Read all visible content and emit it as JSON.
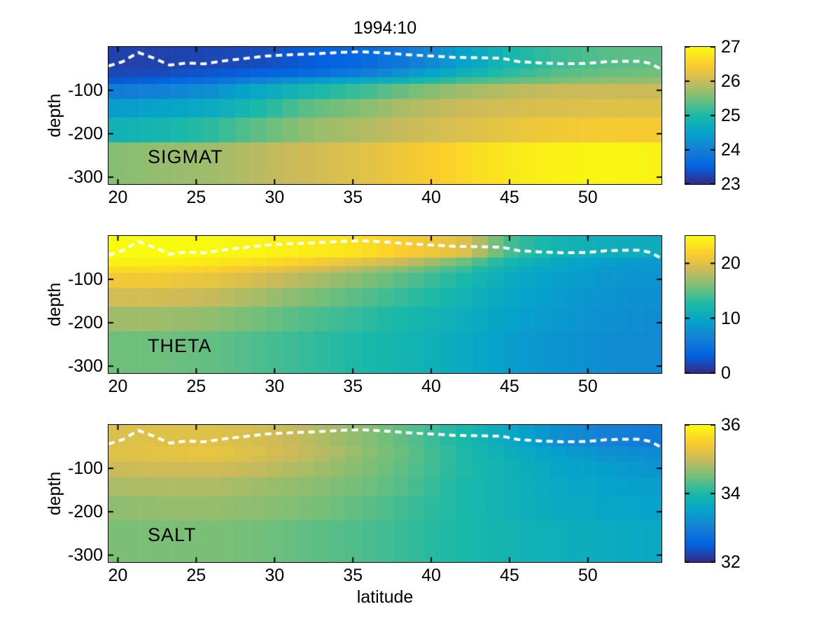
{
  "title": "1994:10",
  "axes": {
    "xlabel": "latitude",
    "ylabel": "depth",
    "x_ticks": [
      20,
      25,
      30,
      35,
      40,
      45,
      50
    ],
    "y_ticks": [
      -100,
      -200,
      -300
    ],
    "x_range": [
      19.4,
      54.7
    ],
    "depth_range_m": [
      0,
      316
    ]
  },
  "colormap": {
    "name": "parula",
    "stops": [
      "#352A87",
      "#0363E1",
      "#1480D6",
      "#06A4CA",
      "#1AB9A8",
      "#72BF7A",
      "#CBBA5A",
      "#FBCD2D",
      "#F9FB0E"
    ]
  },
  "mixed_layer_line": {
    "color": "#FFFFFF",
    "style": "dashed",
    "lat": [
      19.4,
      20.3,
      21.3,
      22.3,
      23.3,
      24.4,
      25.5,
      26.6,
      28.0,
      29.5,
      31.0,
      32.5,
      34.0,
      35.5,
      37.0,
      38.5,
      40.0,
      41.5,
      43.0,
      44.5,
      45.6,
      47.0,
      48.5,
      50.0,
      51.2,
      52.3,
      53.3,
      54.0,
      54.7
    ],
    "depth_m": [
      44,
      34,
      13,
      26,
      42,
      37,
      39,
      33,
      27,
      21,
      18,
      16,
      13,
      11,
      14,
      18,
      21,
      24,
      25,
      26,
      34,
      37,
      39,
      38,
      34,
      33,
      33,
      38,
      52
    ]
  },
  "chart_data": [
    {
      "type": "heatmap",
      "label": "SIGMAT",
      "value_range": [
        23,
        27
      ],
      "colorbar_ticks": [
        23,
        24,
        25,
        26,
        27
      ],
      "lat_nodes": [
        19.5,
        22.7,
        25.9,
        29.1,
        32.3,
        35.5,
        38.6,
        41.8,
        45.0,
        48.2,
        51.4,
        54.5
      ],
      "depth_edges_m": [
        0,
        50,
        70,
        85,
        120,
        163,
        220,
        316
      ],
      "values": [
        [
          23.2,
          23.2,
          23.25,
          23.3,
          23.45,
          23.6,
          23.9,
          24.45,
          24.95,
          25.2,
          25.35,
          25.4
        ],
        [
          23.25,
          23.3,
          23.4,
          23.5,
          23.65,
          23.9,
          24.3,
          24.75,
          25.1,
          25.35,
          25.45,
          25.5
        ],
        [
          23.4,
          23.5,
          23.7,
          24.0,
          24.35,
          24.55,
          24.85,
          25.2,
          25.4,
          25.55,
          25.65,
          25.7
        ],
        [
          23.9,
          24.0,
          24.2,
          24.6,
          24.95,
          25.2,
          25.5,
          25.75,
          25.9,
          26.0,
          26.0,
          26.0
        ],
        [
          24.4,
          24.5,
          24.65,
          25.0,
          25.4,
          25.6,
          25.85,
          26.0,
          26.1,
          26.15,
          26.2,
          26.2
        ],
        [
          24.8,
          24.9,
          25.1,
          25.4,
          25.7,
          25.85,
          26.0,
          26.15,
          26.3,
          26.4,
          26.45,
          26.45
        ],
        [
          25.6,
          25.7,
          25.75,
          25.9,
          26.05,
          26.2,
          26.4,
          26.6,
          26.8,
          26.9,
          26.95,
          26.9
        ]
      ]
    },
    {
      "type": "heatmap",
      "label": "THETA",
      "value_range": [
        0,
        25
      ],
      "colorbar_ticks": [
        0,
        10,
        20
      ],
      "lat_nodes": [
        19.5,
        22.7,
        25.9,
        29.1,
        32.3,
        35.5,
        38.6,
        41.8,
        45.0,
        48.2,
        51.4,
        54.5
      ],
      "depth_edges_m": [
        0,
        50,
        70,
        85,
        120,
        163,
        220,
        316
      ],
      "values": [
        [
          25.0,
          25.0,
          24.8,
          24.5,
          24.0,
          23.3,
          21.5,
          20.3,
          14.0,
          11.5,
          10.8,
          10.5
        ],
        [
          24.3,
          24.3,
          23.8,
          23.0,
          21.8,
          20.3,
          18.5,
          15.8,
          12.0,
          10.0,
          9.0,
          8.5
        ],
        [
          22.8,
          22.8,
          22.2,
          21.0,
          19.5,
          17.8,
          16.0,
          13.8,
          11.0,
          9.5,
          8.5,
          8.2
        ],
        [
          21.2,
          21.2,
          20.5,
          19.2,
          17.7,
          16.2,
          14.5,
          12.6,
          10.3,
          9.0,
          8.2,
          7.9
        ],
        [
          19.2,
          19.2,
          18.6,
          17.4,
          16.0,
          14.7,
          13.3,
          11.7,
          9.8,
          8.7,
          7.9,
          7.6
        ],
        [
          17.2,
          17.2,
          16.7,
          15.6,
          14.4,
          13.3,
          12.2,
          10.9,
          9.3,
          8.4,
          7.6,
          7.3
        ],
        [
          15.5,
          15.5,
          15.1,
          14.3,
          13.4,
          12.5,
          11.6,
          10.4,
          8.8,
          8.0,
          7.3,
          7.0
        ]
      ]
    },
    {
      "type": "heatmap",
      "label": "SALT",
      "value_range": [
        32,
        36
      ],
      "colorbar_ticks": [
        32,
        34,
        36
      ],
      "lat_nodes": [
        19.5,
        22.7,
        25.9,
        29.1,
        32.3,
        35.5,
        38.6,
        41.8,
        45.0,
        48.2,
        51.4,
        54.5
      ],
      "depth_edges_m": [
        0,
        50,
        70,
        85,
        120,
        163,
        220,
        316
      ],
      "values": [
        [
          35.15,
          35.2,
          35.2,
          35.1,
          34.9,
          34.65,
          34.35,
          34.0,
          33.6,
          33.2,
          33.0,
          32.9
        ],
        [
          35.2,
          35.25,
          35.3,
          35.15,
          34.95,
          34.7,
          34.4,
          34.05,
          33.7,
          33.4,
          33.2,
          33.1
        ],
        [
          35.15,
          35.2,
          35.25,
          35.1,
          34.9,
          34.65,
          34.4,
          34.05,
          33.75,
          33.5,
          33.3,
          33.2
        ],
        [
          35.0,
          35.05,
          35.05,
          34.95,
          34.8,
          34.6,
          34.35,
          34.05,
          33.8,
          33.55,
          33.4,
          33.3
        ],
        [
          34.8,
          34.85,
          34.85,
          34.75,
          34.65,
          34.5,
          34.3,
          34.0,
          33.8,
          33.6,
          33.5,
          33.4
        ],
        [
          34.65,
          34.7,
          34.7,
          34.65,
          34.55,
          34.4,
          34.2,
          34.0,
          33.8,
          33.65,
          33.55,
          33.5
        ],
        [
          34.55,
          34.55,
          34.55,
          34.5,
          34.4,
          34.3,
          34.15,
          34.0,
          33.85,
          33.75,
          33.65,
          33.6
        ]
      ]
    }
  ]
}
